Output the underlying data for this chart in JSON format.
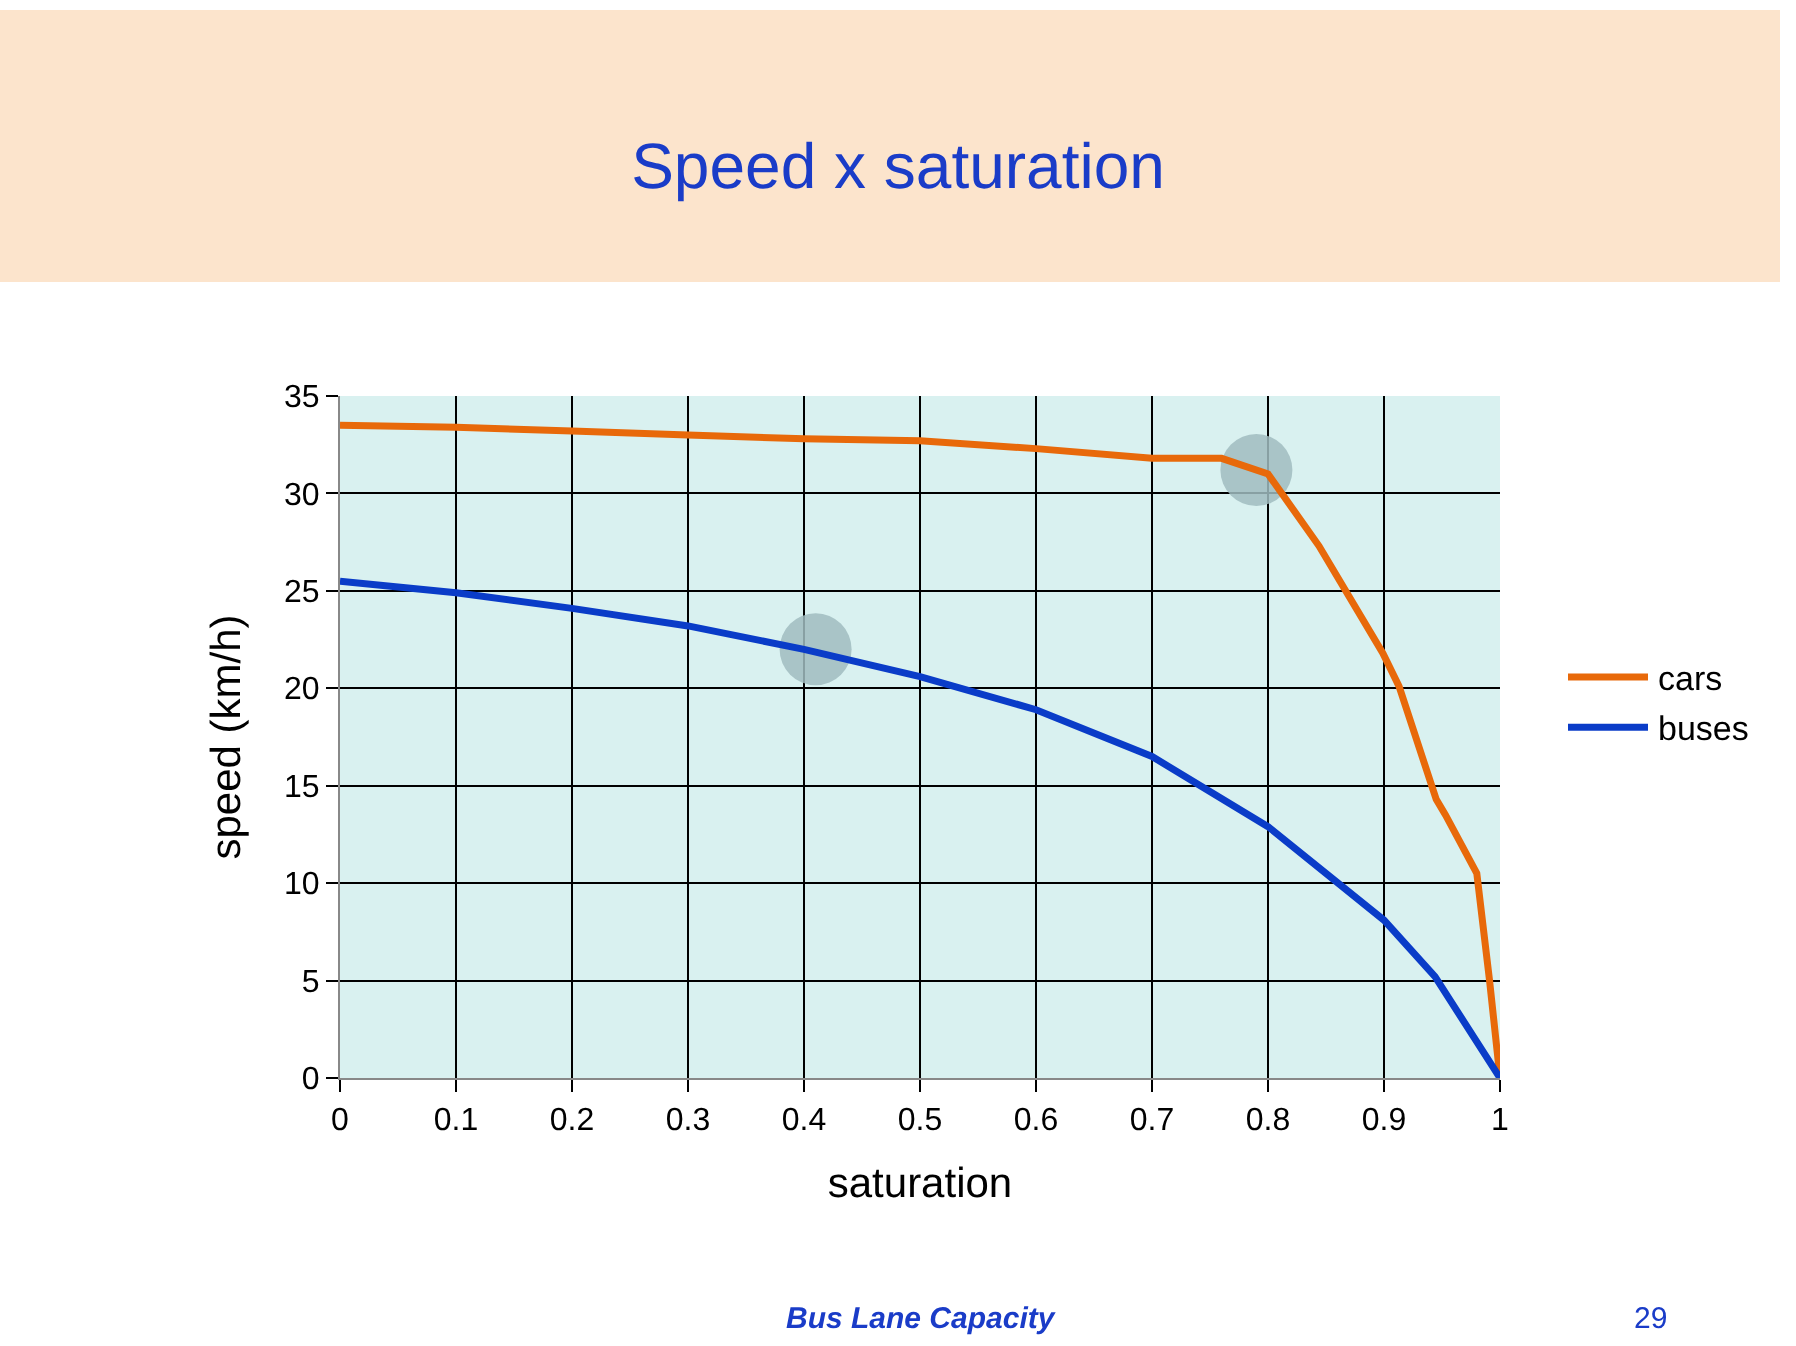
{
  "chart_data": {
    "type": "line",
    "title": "Speed x saturation",
    "xlabel": "saturation",
    "ylabel": "speed (km/h)",
    "xlim": [
      0,
      1
    ],
    "xticks": [
      0,
      0.1,
      0.2,
      0.3,
      0.4,
      0.5,
      0.6,
      0.7,
      0.8,
      0.9,
      1
    ],
    "ylim": [
      0,
      35
    ],
    "yticks": [
      0,
      5,
      10,
      15,
      20,
      25,
      30,
      35
    ],
    "grid": true,
    "legend": "right",
    "marker": "none",
    "line_style": "solid",
    "series": [
      {
        "name": "cars",
        "color": "#e8690a",
        "x": [
          0,
          0.1,
          0.2,
          0.3,
          0.4,
          0.5,
          0.6,
          0.7,
          0.76,
          0.8,
          0.844,
          0.899,
          0.913,
          0.945,
          0.953,
          0.98,
          0.991,
          1
        ],
        "values": [
          33.5,
          33.4,
          33.2,
          33.0,
          32.8,
          32.7,
          32.3,
          31.8,
          31.8,
          31.0,
          27.3,
          21.8,
          20.1,
          14.3,
          13.5,
          10.5,
          5.0,
          0
        ]
      },
      {
        "name": "buses",
        "color": "#0a3cc8",
        "x": [
          0,
          0.1,
          0.2,
          0.3,
          0.4,
          0.5,
          0.6,
          0.7,
          0.8,
          0.9,
          0.944,
          1
        ],
        "values": [
          25.5,
          24.9,
          24.1,
          23.2,
          22.0,
          20.6,
          18.9,
          16.5,
          12.9,
          8.1,
          5.2,
          0
        ]
      },
      {
        "type": "scatter",
        "marker": "circle",
        "color": "#a0bcc0",
        "x": [
          0.41,
          0.79
        ],
        "values": [
          22,
          31.2
        ]
      }
    ],
    "annotations": [
      "Bus Lane Capacity",
      "29"
    ]
  }
}
